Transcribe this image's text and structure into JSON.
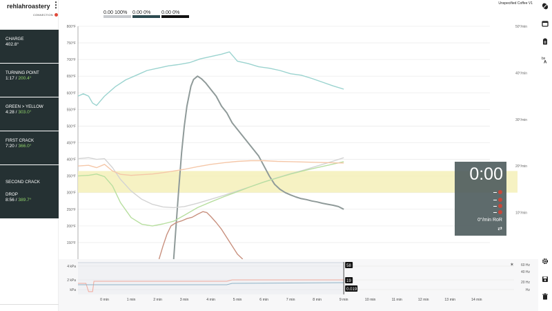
{
  "app": {
    "brand": "rehlahroastery",
    "connection": "CONNECTION",
    "coffee_title": "Unspecified Coffee V1"
  },
  "meters": [
    {
      "value": "0.00",
      "percent": "100%",
      "fill": 1.0,
      "color": "#c7cace"
    },
    {
      "value": "0.00",
      "percent": "0%",
      "fill": 0.0,
      "color": "#2d4a50"
    },
    {
      "value": "0.00",
      "percent": "0%",
      "fill": 0.0,
      "color": "#111111"
    }
  ],
  "events": [
    {
      "label": "CHARGE",
      "time": "",
      "temp": "",
      "line": "402.8°"
    },
    {
      "label": "TURNING POINT",
      "time": "1:17",
      "temp": "200.4°",
      "line": ""
    },
    {
      "label": "GREEN > YELLOW",
      "time": "4:28",
      "temp": "303.0°",
      "line": ""
    },
    {
      "label": "FIRST CRACK",
      "time": "7:20",
      "temp": "366.0°",
      "line": ""
    },
    {
      "label": "SECOND CRACK",
      "time": "",
      "temp": "",
      "line": ""
    },
    {
      "label": "DROP",
      "time": "8:56",
      "temp": "389.7°",
      "line": ""
    }
  ],
  "timer": {
    "time": "0:00",
    "ror": "0°/min RoR",
    "swap_icon": "swap-icon"
  },
  "chart_data": {
    "type": "line",
    "x_ticks": [
      "0 min",
      "1 min",
      "2 min",
      "3 min",
      "4 min",
      "5 min",
      "6 min",
      "7 min",
      "8 min",
      "9 min",
      "10 min",
      "11 min",
      "12 min",
      "13 min",
      "14 min"
    ],
    "y_ticks": [
      "150°F",
      "200°F",
      "250°F",
      "300°F",
      "350°F",
      "400°F",
      "450°F",
      "500°F",
      "550°F",
      "600°F",
      "650°F",
      "700°F",
      "750°F",
      "800°F"
    ],
    "y2_ticks": [
      "10°/min",
      "20°/min",
      "30°/min",
      "40°/min",
      "50°/min"
    ],
    "xlim": [
      -1,
      14.5
    ],
    "ylim": [
      100,
      800
    ],
    "y2lim": [
      0,
      50
    ],
    "band": {
      "low": 300,
      "high": 365,
      "color": "#f5f0b8"
    },
    "series": [
      {
        "color": "#9ad3cf",
        "axis": "ror",
        "x": [
          -1,
          -0.8,
          -0.6,
          -0.45,
          -0.3,
          0,
          0.4,
          0.8,
          1.2,
          1.6,
          2,
          2.4,
          2.8,
          3.2,
          3.6,
          4,
          4.4,
          4.7,
          5,
          5.4,
          5.8,
          6.2,
          6.6,
          7,
          7.4,
          7.8,
          8.2,
          8.6,
          9
        ],
        "y": [
          35,
          35.5,
          35,
          33.5,
          33,
          35,
          37,
          38.5,
          39.5,
          40.5,
          41,
          41.5,
          41.8,
          42.2,
          43,
          43.5,
          44,
          44.5,
          42.5,
          42,
          41.3,
          41,
          40.5,
          39.8,
          39.5,
          38.8,
          38,
          37.2,
          36.5
        ]
      },
      {
        "color": "#8f9a99",
        "axis": "temp",
        "x": [
          2.6,
          2.7,
          2.8,
          2.9,
          3,
          3.1,
          3.25,
          3.35,
          3.5,
          3.65,
          3.8,
          4,
          4.2,
          4.4,
          4.6,
          4.8,
          5,
          5.2,
          5.4,
          5.6,
          5.8,
          6,
          6.2,
          6.4,
          6.6,
          6.8,
          7,
          7.2,
          7.4,
          7.6,
          7.8,
          8,
          8.2,
          8.4,
          8.6,
          8.8,
          9
        ],
        "y": [
          100,
          210,
          320,
          420,
          500,
          560,
          620,
          640,
          650,
          642,
          630,
          610,
          590,
          560,
          540,
          510,
          490,
          470,
          450,
          430,
          410,
          380,
          350,
          325,
          310,
          300,
          293,
          287,
          282,
          279,
          275,
          272,
          268,
          265,
          262,
          258,
          250
        ]
      },
      {
        "color": "#d3d3d3",
        "axis": "temp",
        "x": [
          -1,
          -0.6,
          -0.3,
          0,
          0.3,
          0.6,
          1,
          1.4,
          1.8,
          2.2,
          2.6,
          3,
          3.5,
          4,
          4.5,
          5,
          5.5,
          6,
          6.5,
          7,
          7.5,
          8,
          8.5,
          9
        ],
        "y": [
          402,
          405,
          400,
          402,
          375,
          340,
          305,
          280,
          265,
          257,
          255,
          258,
          268,
          280,
          292,
          305,
          318,
          332,
          345,
          357,
          368,
          380,
          392,
          405
        ]
      },
      {
        "color": "#b8dfa0",
        "axis": "temp",
        "x": [
          -1,
          -0.6,
          -0.3,
          0,
          0.3,
          0.6,
          1,
          1.4,
          1.8,
          2.2,
          2.6,
          3,
          3.5,
          4,
          4.5,
          5,
          5.5,
          6,
          6.5,
          7,
          7.5,
          8,
          8.5,
          9
        ],
        "y": [
          350,
          352,
          356,
          348,
          320,
          270,
          225,
          205,
          200,
          206,
          214,
          232,
          255,
          272,
          288,
          303,
          318,
          332,
          344,
          356,
          366,
          375,
          384,
          393
        ]
      },
      {
        "color": "#f5c7a8",
        "axis": "temp",
        "x": [
          -1,
          -0.6,
          -0.3,
          0,
          0.3,
          0.6,
          1,
          1.4,
          1.8,
          2.2,
          2.6,
          3,
          3.5,
          4,
          4.5,
          5,
          5.5,
          6,
          6.5,
          7,
          7.5,
          8,
          8.5,
          9
        ],
        "y": [
          380,
          382,
          375,
          385,
          365,
          355,
          352,
          354,
          356,
          360,
          365,
          370,
          378,
          385,
          390,
          394,
          396,
          396,
          394,
          393,
          392,
          391,
          390,
          389
        ]
      },
      {
        "color": "#c8907e",
        "axis": "temp",
        "x": [
          2.05,
          2.2,
          2.35,
          2.5,
          2.7,
          2.9,
          3.1,
          3.3,
          3.5,
          3.7,
          3.85,
          4,
          4.2,
          4.4,
          4.6,
          4.8,
          5,
          5.2
        ],
        "y": [
          100,
          140,
          175,
          200,
          210,
          215,
          222,
          226,
          235,
          243,
          240,
          228,
          210,
          190,
          165,
          140,
          115,
          100
        ]
      }
    ]
  },
  "pressure_chart": {
    "left_ticks": [
      "4 kPa",
      "2 kPa",
      "kPa"
    ],
    "right_ticks": [
      "60 Hz",
      "40 Hz",
      "20 Hz",
      "Hz"
    ],
    "tags": [
      "58",
      "19",
      "0.019"
    ],
    "pin_icon": "pin-icon"
  },
  "toolbar": {
    "icons": [
      "coffee-bean-icon",
      "calendar-icon",
      "clipboard-icon",
      "translate-icon",
      "gear-icon",
      "save-icon",
      "trash-icon"
    ]
  }
}
